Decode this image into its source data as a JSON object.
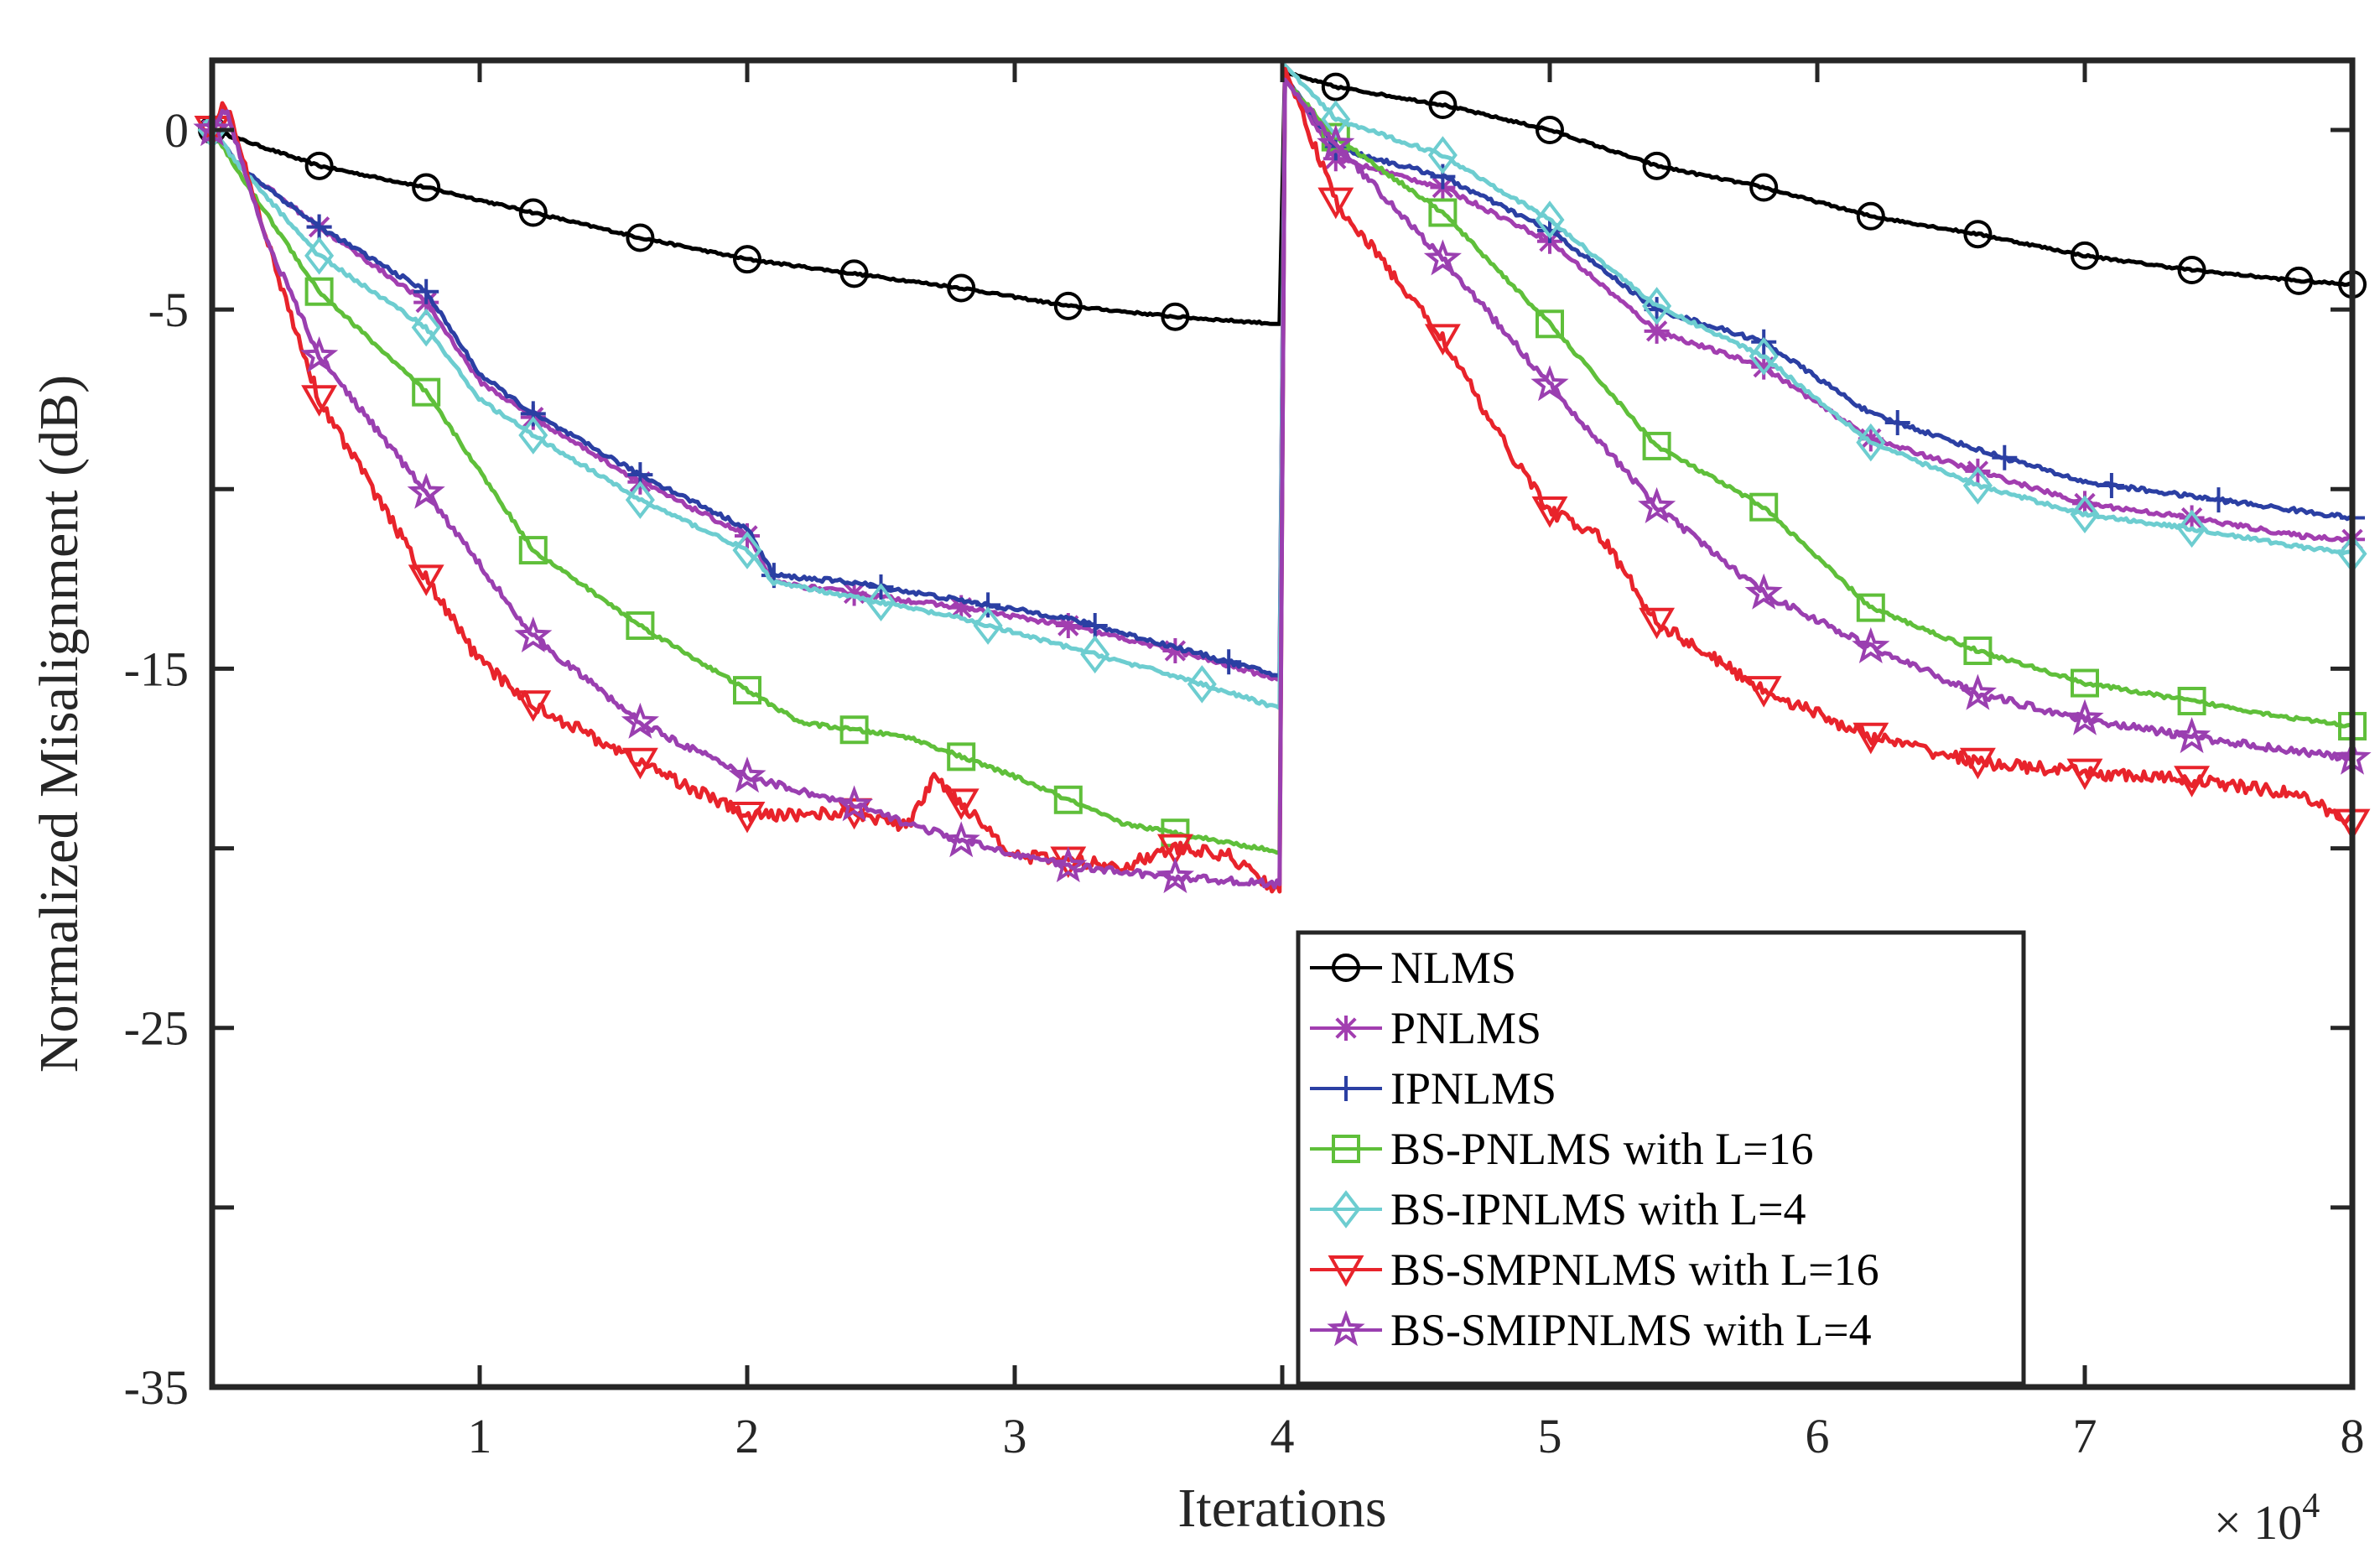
{
  "chart_data": {
    "type": "line",
    "title": "",
    "xlabel": "Iterations",
    "ylabel": "Normalized Misalignment (dB)",
    "x_multiplier_label": "× 10",
    "x_multiplier_exponent": "4",
    "xlim": [
      0,
      8
    ],
    "ylim": [
      -35,
      2
    ],
    "x_ticks": [
      1,
      2,
      3,
      4,
      5,
      6,
      7,
      8
    ],
    "x_tick_labels": [
      "1",
      "2",
      "3",
      "4",
      "5",
      "6",
      "7",
      "8"
    ],
    "y_ticks": [
      -35,
      -25,
      -15,
      -5,
      0
    ],
    "y_tick_labels": [
      "-35",
      "-25",
      "-15",
      "-5",
      "0"
    ],
    "grid": false,
    "legend_position": "bottom-right",
    "series": [
      {
        "name": "NLMS",
        "color": "#000000",
        "marker": "circle",
        "x": [
          0,
          0.4,
          0.8,
          1.2,
          1.6,
          2.0,
          2.4,
          2.8,
          3.2,
          3.6,
          3.99,
          4.01,
          4.2,
          4.6,
          5.0,
          5.4,
          5.8,
          6.2,
          6.6,
          7.0,
          7.4,
          7.8,
          8.0
        ],
        "y": [
          0,
          -1.0,
          -1.6,
          -2.3,
          -3.0,
          -3.6,
          -4.0,
          -4.4,
          -4.9,
          -5.2,
          -5.4,
          1.6,
          1.2,
          0.7,
          0.0,
          -1.0,
          -1.6,
          -2.4,
          -2.9,
          -3.5,
          -3.9,
          -4.2,
          -4.3
        ],
        "marker_x": [
          0,
          0.4,
          0.8,
          1.2,
          1.6,
          2.0,
          2.4,
          2.8,
          3.2,
          3.6,
          4.2,
          4.6,
          5.0,
          5.4,
          5.8,
          6.2,
          6.6,
          7.0,
          7.4,
          7.8,
          8.0
        ]
      },
      {
        "name": "PNLMS",
        "color": "#a23eb0",
        "marker": "asterisk",
        "x": [
          0,
          0.1,
          0.4,
          0.8,
          1.0,
          1.2,
          1.6,
          2.0,
          2.1,
          2.4,
          2.8,
          3.2,
          3.6,
          3.99,
          4.01,
          4.2,
          4.6,
          5.0,
          5.4,
          5.8,
          6.2,
          6.6,
          7.0,
          7.4,
          7.8,
          8.0
        ],
        "y": [
          0,
          -1.0,
          -2.7,
          -4.8,
          -7.0,
          -8.0,
          -9.8,
          -11.3,
          -12.6,
          -12.9,
          -13.3,
          -13.8,
          -14.5,
          -15.3,
          1.5,
          -0.8,
          -1.6,
          -3.1,
          -5.6,
          -6.6,
          -8.6,
          -9.5,
          -10.4,
          -10.8,
          -11.3,
          -11.4
        ],
        "marker_x": [
          0,
          0.4,
          0.8,
          1.2,
          1.6,
          2.0,
          2.4,
          2.8,
          3.2,
          3.6,
          4.2,
          4.6,
          5.0,
          5.4,
          5.8,
          6.2,
          6.6,
          7.0,
          7.4,
          8.0
        ]
      },
      {
        "name": "IPNLMS",
        "color": "#2b3fa3",
        "marker": "plus",
        "x": [
          0,
          0.1,
          0.4,
          0.8,
          1.0,
          1.2,
          1.6,
          2.0,
          2.1,
          2.4,
          2.8,
          3.2,
          3.6,
          3.99,
          4.01,
          4.2,
          4.6,
          5.0,
          5.4,
          5.8,
          6.2,
          6.6,
          7.0,
          7.4,
          7.8,
          8.0
        ],
        "y": [
          0,
          -1.0,
          -2.7,
          -4.5,
          -6.8,
          -7.9,
          -9.6,
          -11.1,
          -12.4,
          -12.6,
          -13.1,
          -13.6,
          -14.4,
          -15.2,
          1.5,
          -0.5,
          -1.3,
          -2.8,
          -5.0,
          -5.9,
          -7.9,
          -8.9,
          -9.8,
          -10.2,
          -10.6,
          -10.8
        ],
        "marker_x": [
          0.4,
          0.8,
          1.2,
          1.6,
          2.1,
          2.5,
          2.9,
          3.3,
          3.8,
          4.2,
          4.6,
          5.0,
          5.4,
          5.8,
          6.3,
          6.7,
          7.1,
          7.5,
          8.0
        ]
      },
      {
        "name": "BS-PNLMS with L=16",
        "color": "#5fbf3a",
        "marker": "square",
        "x": [
          0,
          0.1,
          0.4,
          0.8,
          1.2,
          1.6,
          2.0,
          2.2,
          2.6,
          3.0,
          3.4,
          3.99,
          4.01,
          4.2,
          4.6,
          5.0,
          5.4,
          5.8,
          6.2,
          6.6,
          7.0,
          7.4,
          7.8,
          8.0
        ],
        "y": [
          0,
          -1.2,
          -4.5,
          -7.3,
          -11.7,
          -13.8,
          -15.6,
          -16.5,
          -16.9,
          -18.0,
          -19.3,
          -20.1,
          1.4,
          -0.2,
          -2.3,
          -5.4,
          -8.8,
          -10.5,
          -13.3,
          -14.5,
          -15.4,
          -15.9,
          -16.4,
          -16.6
        ],
        "marker_x": [
          0.4,
          0.8,
          1.2,
          1.6,
          2.0,
          2.4,
          2.8,
          3.2,
          3.6,
          4.2,
          4.6,
          5.0,
          5.4,
          5.8,
          6.2,
          6.6,
          7.0,
          7.4,
          8.0
        ]
      },
      {
        "name": "BS-IPNLMS with L=4",
        "color": "#6dcdd0",
        "marker": "diamond",
        "x": [
          0,
          0.1,
          0.4,
          0.8,
          1.0,
          1.2,
          1.6,
          2.0,
          2.1,
          2.4,
          2.8,
          3.2,
          3.6,
          3.99,
          4.01,
          4.2,
          4.6,
          5.0,
          5.4,
          5.8,
          6.2,
          6.6,
          7.0,
          7.4,
          7.8,
          8.0
        ],
        "y": [
          0,
          -1.0,
          -3.5,
          -5.5,
          -7.5,
          -8.5,
          -10.3,
          -11.7,
          -12.6,
          -13.0,
          -13.6,
          -14.4,
          -15.2,
          -16.1,
          1.8,
          0.3,
          -0.7,
          -2.5,
          -4.9,
          -6.3,
          -8.7,
          -9.9,
          -10.7,
          -11.1,
          -11.6,
          -11.8
        ],
        "marker_x": [
          0,
          0.4,
          0.8,
          1.2,
          1.6,
          2.0,
          2.5,
          2.9,
          3.3,
          3.7,
          4.2,
          4.6,
          5.0,
          5.4,
          5.8,
          6.2,
          6.6,
          7.0,
          7.4,
          8.0
        ]
      },
      {
        "name": "BS-SMPNLMS with L=16",
        "color": "#e8232b",
        "marker": "triangle-down",
        "x": [
          0,
          0.05,
          0.2,
          0.4,
          0.8,
          1.0,
          1.2,
          1.6,
          2.0,
          2.4,
          2.6,
          2.7,
          3.0,
          3.4,
          3.6,
          3.8,
          3.99,
          4.01,
          4.2,
          4.6,
          4.8,
          5.0,
          5.2,
          5.4,
          5.8,
          6.2,
          6.6,
          7.0,
          7.4,
          7.8,
          8.0
        ],
        "y": [
          0,
          0.8,
          -3.0,
          -7.5,
          -12.5,
          -14.8,
          -16.0,
          -17.6,
          -19.1,
          -19.0,
          -19.4,
          -18.0,
          -20.2,
          -20.5,
          -20.0,
          -20.2,
          -21.2,
          1.7,
          -2.0,
          -5.8,
          -8.4,
          -10.6,
          -11.4,
          -13.7,
          -15.6,
          -16.9,
          -17.6,
          -17.9,
          -18.1,
          -18.5,
          -19.3
        ],
        "marker_x": [
          0,
          0.4,
          0.8,
          1.2,
          1.6,
          2.0,
          2.4,
          2.8,
          3.2,
          3.6,
          4.2,
          4.6,
          5.0,
          5.4,
          5.8,
          6.2,
          6.6,
          7.0,
          7.4,
          8.0
        ]
      },
      {
        "name": "BS-SMIPNLMS with L=4",
        "color": "#9a3fb0",
        "marker": "star",
        "x": [
          0,
          0.05,
          0.2,
          0.4,
          0.8,
          1.2,
          1.6,
          2.0,
          2.4,
          2.8,
          3.2,
          3.6,
          3.99,
          4.01,
          4.2,
          4.6,
          5.0,
          5.4,
          5.8,
          6.2,
          6.6,
          7.0,
          7.4,
          7.8,
          8.0
        ],
        "y": [
          0,
          0.6,
          -3.0,
          -6.3,
          -10.1,
          -14.1,
          -16.5,
          -18.0,
          -18.8,
          -19.8,
          -20.5,
          -20.8,
          -21.0,
          1.4,
          -0.4,
          -3.6,
          -7.1,
          -10.5,
          -12.9,
          -14.4,
          -15.7,
          -16.4,
          -16.9,
          -17.3,
          -17.5
        ],
        "marker_x": [
          0,
          0.4,
          0.8,
          1.2,
          1.6,
          2.0,
          2.4,
          2.8,
          3.2,
          3.6,
          4.2,
          4.6,
          5.0,
          5.4,
          5.8,
          6.2,
          6.6,
          7.0,
          7.4,
          8.0
        ]
      }
    ]
  }
}
